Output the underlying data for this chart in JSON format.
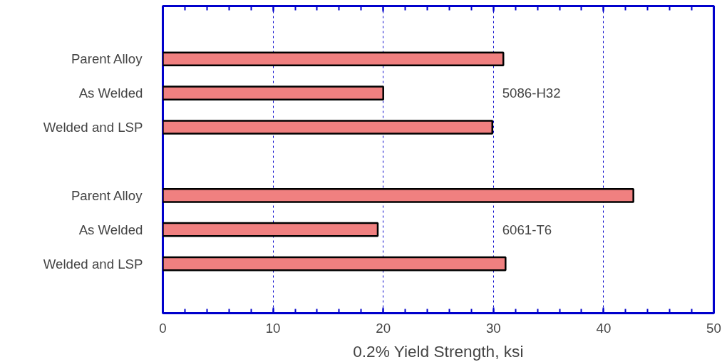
{
  "chart_data": {
    "type": "bar",
    "orientation": "horizontal",
    "xlabel": "0.2% Yield Strength, ksi",
    "categories": [
      "Parent Alloy",
      "As Welded",
      "Welded and LSP",
      null,
      "Parent Alloy",
      "As Welded",
      "Welded and LSP"
    ],
    "values": [
      30.9,
      20.0,
      29.9,
      null,
      42.7,
      19.5,
      31.1
    ],
    "color": "#f08080",
    "xlim": [
      0,
      50
    ],
    "xticks": [
      0,
      10,
      20,
      30,
      40,
      50
    ],
    "grid": "x",
    "annotations": [
      "5086-H32",
      "6061-T6"
    ]
  }
}
